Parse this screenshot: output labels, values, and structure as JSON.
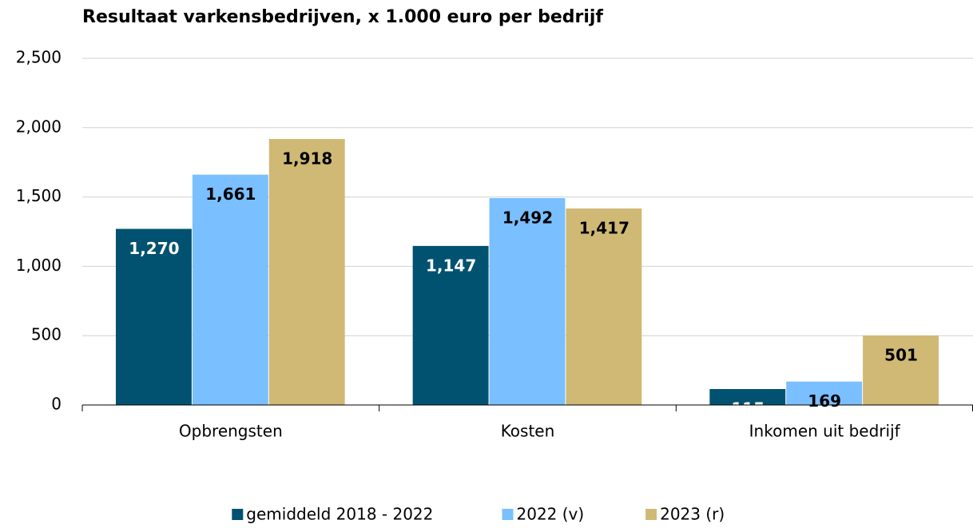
{
  "chart_data": {
    "type": "bar",
    "title": "Resultaat varkensbedrijven, x 1.000 euro per bedrijf",
    "categories": [
      "Opbrengsten",
      "Kosten",
      "Inkomen uit bedrijf"
    ],
    "series": [
      {
        "name": "gemiddeld 2018 - 2022",
        "color": "#005270",
        "values": [
          1270,
          1147,
          115
        ],
        "value_labels": [
          "1,270",
          "1,147",
          "115"
        ]
      },
      {
        "name": "2022 (v)",
        "color": "#7abfff",
        "values": [
          1661,
          1492,
          169
        ],
        "value_labels": [
          "1,661",
          "1,492",
          "169"
        ]
      },
      {
        "name": "2023 (r)",
        "color": "#cfb974",
        "values": [
          1918,
          1417,
          501
        ],
        "value_labels": [
          "1,918",
          "1,417",
          "501"
        ]
      }
    ],
    "ylim": [
      0,
      2500
    ],
    "yticks": [
      0,
      500,
      {
        "value": 1000,
        "label": "1,000"
      },
      {
        "value": 1500,
        "label": "1,500"
      },
      {
        "value": 2000,
        "label": "2,000"
      },
      {
        "value": 2500,
        "label": "2,500"
      }
    ],
    "grid": true,
    "legend": "bottom"
  }
}
